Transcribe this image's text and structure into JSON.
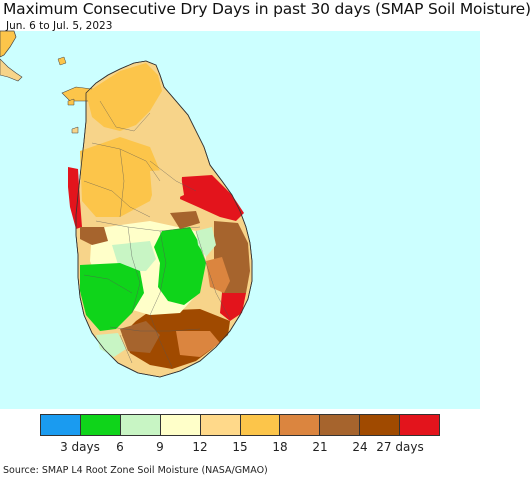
{
  "title": "Maximum Consecutive Dry Days in past 30 days (SMAP Soil Moisture)",
  "subtitle": "Jun. 6 to Jul. 5, 2023",
  "source": "Source: SMAP L4 Root Zone Soil Moisture (NASA/GMAO)",
  "colors": {
    "ocean": "#ccffff",
    "mainland": "#f7d48a",
    "land_outline": "#444444"
  },
  "legend": {
    "swatches": [
      "#1a9bf0",
      "#0fd41a",
      "#c8f5c4",
      "#ffffc9",
      "#ffd98a",
      "#fcc54a",
      "#db853f",
      "#a6642d",
      "#a04a00",
      "#e3141c"
    ],
    "labels": [
      "3 days",
      "6",
      "9",
      "12",
      "15",
      "18",
      "21",
      "24",
      "27 days"
    ]
  }
}
